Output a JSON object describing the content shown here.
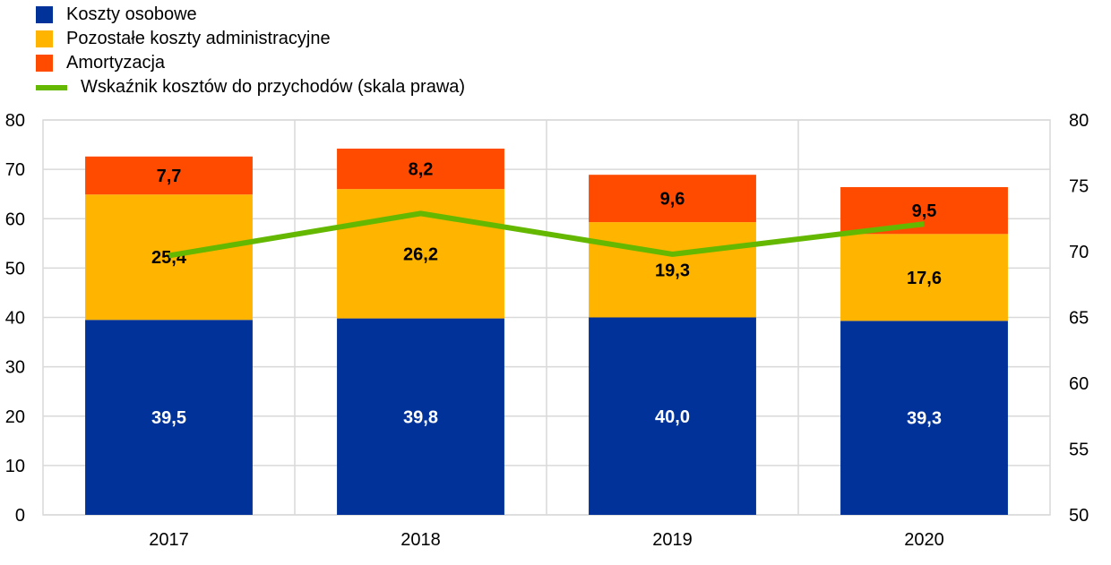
{
  "chart_data": {
    "type": "bar",
    "stacked": true,
    "categories": [
      "2017",
      "2018",
      "2019",
      "2020"
    ],
    "series": [
      {
        "name": "Koszty osobowe",
        "values": [
          39.5,
          39.8,
          40.0,
          39.3
        ],
        "labels": [
          "39,5",
          "39,8",
          "40,0",
          "39,3"
        ],
        "color": "#003299",
        "label_color": "#ffffff"
      },
      {
        "name": "Pozostałe koszty administracyjne",
        "values": [
          25.4,
          26.2,
          19.3,
          17.6
        ],
        "labels": [
          "25,4",
          "26,2",
          "19,3",
          "17,6"
        ],
        "color": "#ffb400",
        "label_color": "#000000"
      },
      {
        "name": "Amortyzacja",
        "values": [
          7.7,
          8.2,
          9.6,
          9.5
        ],
        "labels": [
          "7,7",
          "8,2",
          "9,6",
          "9,5"
        ],
        "color": "#ff4b00",
        "label_color": "#000000"
      }
    ],
    "line_series": {
      "name": "Wskaźnik kosztów do przychodów (skala prawa)",
      "values": [
        69.7,
        72.9,
        69.8,
        72.1
      ],
      "color": "#65b800",
      "axis": "right"
    },
    "ylim_left": [
      0,
      80
    ],
    "yticks_left": [
      "0",
      "10",
      "20",
      "30",
      "40",
      "50",
      "60",
      "70",
      "80"
    ],
    "ylim_right": [
      50,
      80
    ],
    "yticks_right": [
      "50",
      "55",
      "60",
      "65",
      "70",
      "75",
      "80"
    ],
    "grid": true,
    "legend_position": "top-left"
  }
}
